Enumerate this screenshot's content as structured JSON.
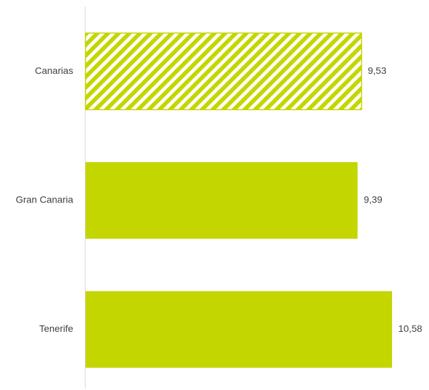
{
  "chart_data": {
    "type": "bar",
    "orientation": "horizontal",
    "categories": [
      "Canarias",
      "Gran Canaria",
      "Tenerife"
    ],
    "values": [
      9.53,
      9.39,
      10.58
    ],
    "value_labels": [
      "9,53",
      "9,39",
      "10,58"
    ],
    "bar_styles": [
      "hatched",
      "solid",
      "solid"
    ],
    "xlim": [
      0,
      10.58
    ],
    "grid": false,
    "legend": "none",
    "colors": {
      "bar": "#c4d600",
      "axis": "#d9d9d9",
      "text": "#404040"
    }
  }
}
